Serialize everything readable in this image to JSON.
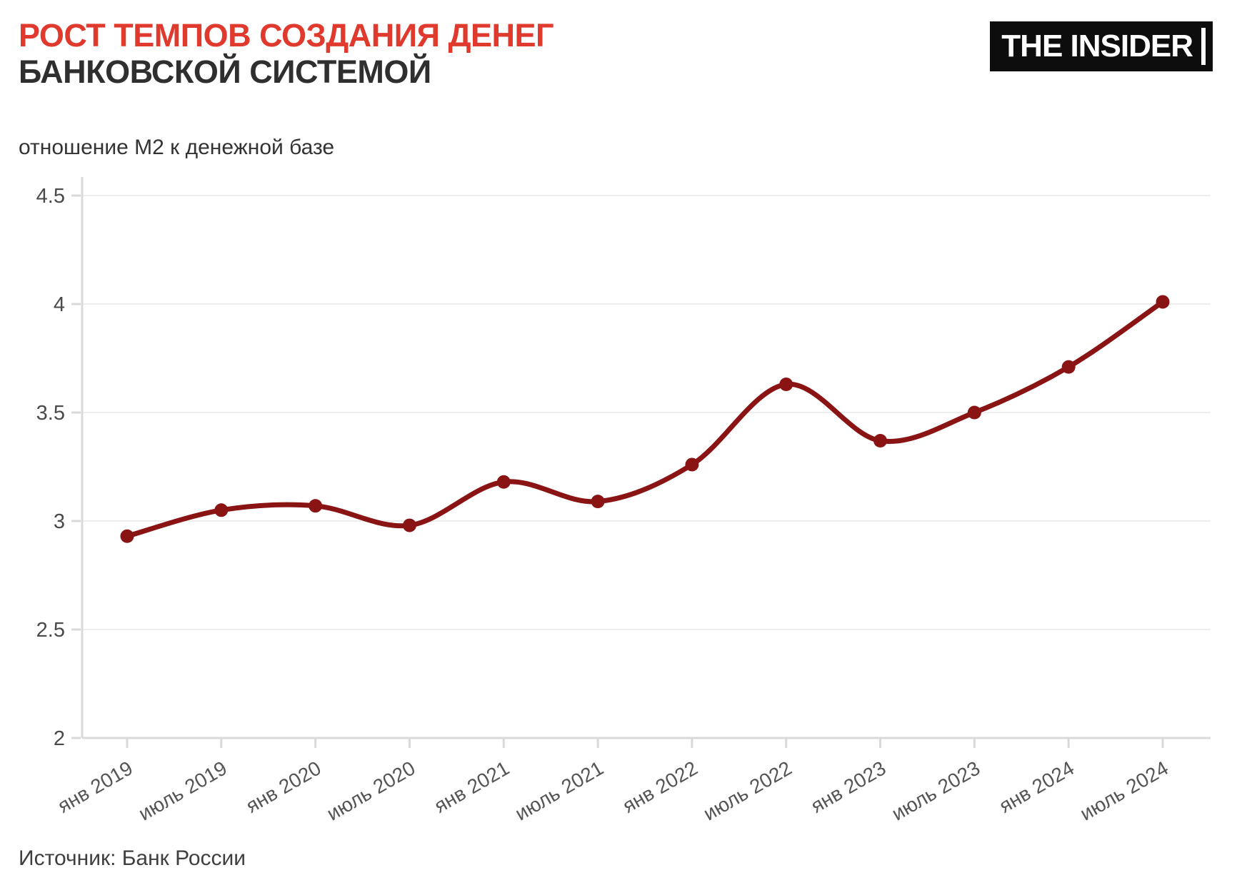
{
  "header": {
    "title_line1": "РОСТ ТЕМПОВ СОЗДАНИЯ ДЕНЕГ",
    "title_line2": "БАНКОВСКОЙ СИСТЕМОЙ",
    "title_accent_color": "#e03a2e",
    "logo_text": "THE INSIDER"
  },
  "subtitle": {
    "text": "отношение М2 к денежной базе"
  },
  "footer": {
    "source": "Источник: Банк России"
  },
  "chart_data": {
    "type": "line",
    "title": "отношение М2 к денежной базе",
    "categories": [
      "янв 2019",
      "июль 2019",
      "янв 2020",
      "июль 2020",
      "янв 2021",
      "июль 2021",
      "янв 2022",
      "июль 2022",
      "янв 2023",
      "июль 2023",
      "янв 2024",
      "июль 2024"
    ],
    "values": [
      2.93,
      3.05,
      3.07,
      2.98,
      3.18,
      3.09,
      3.26,
      3.63,
      3.37,
      3.5,
      3.71,
      4.01
    ],
    "xlabel": "",
    "ylabel": "",
    "ylim": [
      2,
      4.5
    ],
    "yticks": [
      2,
      2.5,
      3,
      3.5,
      4,
      4.5
    ],
    "grid": true,
    "legend_position": "none",
    "line_color": "#8a1414",
    "marker_color": "#8a1414",
    "grid_color": "#ededed",
    "axis_color": "#d9d9d9",
    "tick_label_color": "#4a4a4a"
  }
}
